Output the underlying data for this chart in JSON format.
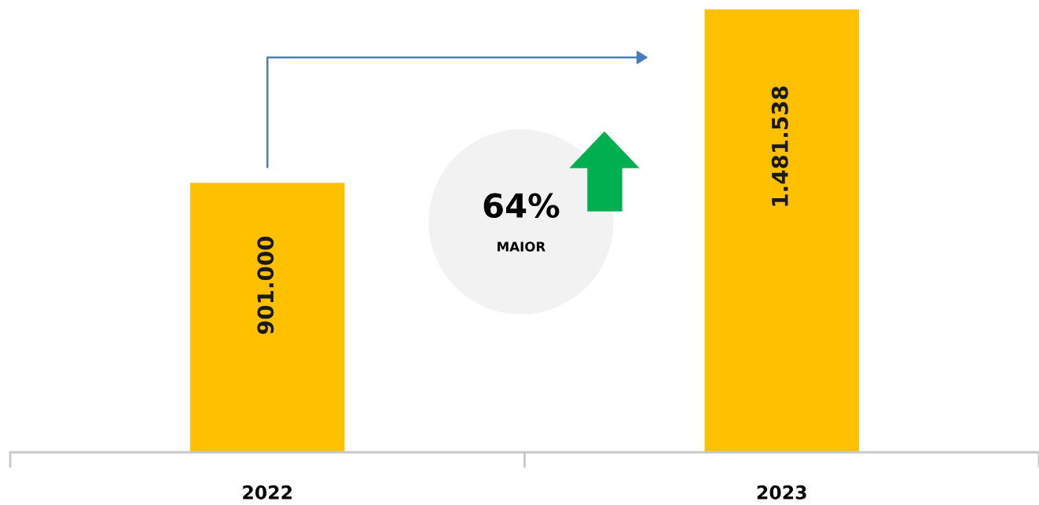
{
  "chart_data": {
    "type": "bar",
    "categories": [
      "2022",
      "2023"
    ],
    "values": [
      901000,
      1481538
    ],
    "color": "#ffc000",
    "value_labels": [
      "901.000",
      "1.481.538"
    ],
    "annotations": [
      "64%",
      "MAIOR"
    ],
    "grid": false,
    "legend": false,
    "tick_labels": "x"
  }
}
